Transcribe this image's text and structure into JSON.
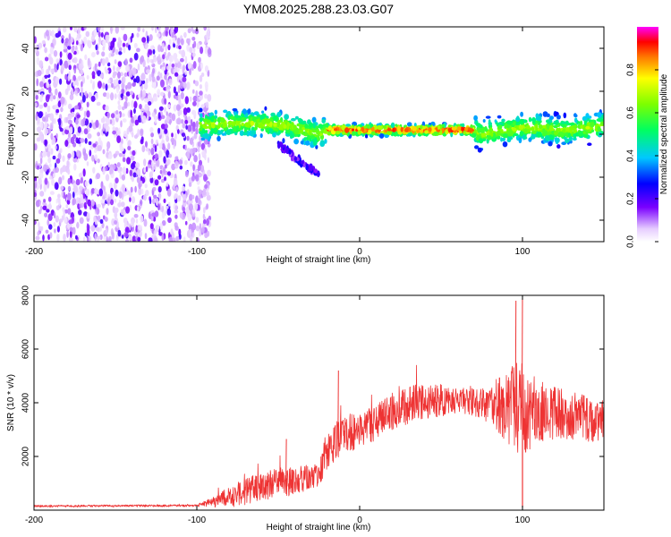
{
  "title": "YM08.2025.288.23.03.G07",
  "chart_data": [
    {
      "type": "heatmap",
      "title": "YM08.2025.288.23.03.G07",
      "xlabel": "Height of straight line (km)",
      "ylabel": "Frequency (Hz)",
      "xlim": [
        -200,
        150
      ],
      "ylim": [
        -50,
        50
      ],
      "xticks": [
        -200,
        -100,
        0,
        100
      ],
      "xtick_labels": [
        "-200",
        "-100",
        "0",
        "100"
      ],
      "yticks": [
        -40,
        -20,
        0,
        20,
        40
      ],
      "ytick_labels": [
        "-40",
        "-20",
        "0",
        "20",
        "40"
      ],
      "colorbar": {
        "label": "Normalized spectral amplitude",
        "range": [
          0,
          1
        ],
        "ticks": [
          0.0,
          0.2,
          0.4,
          0.6,
          0.8
        ],
        "tick_labels": [
          "0.0",
          "0.2",
          "0.4",
          "0.6",
          "0.8"
        ]
      },
      "regions": [
        {
          "description": "broadband noise",
          "x_range": [
            -200,
            -98
          ],
          "y_range": [
            -50,
            50
          ],
          "amplitude": [
            0.0,
            0.25
          ]
        },
        {
          "description": "signal track",
          "x_range": [
            -98,
            150
          ],
          "amplitude": [
            0.3,
            1.0
          ]
        },
        {
          "description": "secondary branch",
          "x_range": [
            -50,
            -25
          ],
          "y_range": [
            -20,
            -5
          ],
          "amplitude": [
            0.15,
            0.3
          ]
        }
      ],
      "ridge": {
        "x": [
          -98,
          -80,
          -60,
          -45,
          -35,
          -25,
          -20,
          0,
          20,
          40,
          60,
          68,
          75,
          80,
          90,
          100,
          110,
          120,
          130,
          140,
          150
        ],
        "y": [
          4,
          5,
          5,
          4,
          2,
          0,
          2,
          2,
          2,
          2,
          2,
          2,
          0,
          1,
          2,
          3,
          3,
          2,
          2,
          3,
          4
        ]
      }
    },
    {
      "type": "line",
      "xlabel": "Height of straight line (km)",
      "ylabel": "SNR (10 * v/v)",
      "xlim": [
        -200,
        150
      ],
      "ylim": [
        0,
        8000
      ],
      "xticks": [
        -200,
        -100,
        0,
        100
      ],
      "xtick_labels": [
        "-200",
        "-100",
        "0",
        "100"
      ],
      "yticks": [
        2000,
        4000,
        6000,
        8000
      ],
      "ytick_labels": [
        "2000",
        "4000",
        "6000",
        "8000"
      ],
      "series": [
        {
          "name": "SNR",
          "color": "#ee3333",
          "trend": {
            "x": [
              -200,
              -100,
              -90,
              -80,
              -70,
              -60,
              -50,
              -40,
              -30,
              -25,
              -20,
              -10,
              0,
              10,
              20,
              30,
              40,
              50,
              60,
              70,
              80,
              90,
              100,
              110,
              120,
              130,
              140,
              150
            ],
            "y": [
              150,
              170,
              300,
              500,
              700,
              900,
              1000,
              1100,
              1200,
              1300,
              2300,
              2800,
              3000,
              3300,
              3700,
              3900,
              4100,
              4100,
              4100,
              4000,
              3900,
              3900,
              3800,
              3700,
              3600,
              3500,
              3400,
              3300
            ]
          },
          "spread": {
            "x": [
              -200,
              -100,
              -90,
              -80,
              -70,
              -60,
              -50,
              -40,
              -30,
              -25,
              -20,
              -10,
              0,
              10,
              20,
              30,
              40,
              50,
              60,
              70,
              80,
              90,
              100,
              110,
              120,
              130,
              140,
              150
            ],
            "y": [
              40,
              40,
              200,
              400,
              500,
              500,
              600,
              500,
              500,
              400,
              800,
              700,
              700,
              700,
              700,
              700,
              700,
              600,
              500,
              500,
              700,
              1400,
              1800,
              1200,
              1000,
              900,
              900,
              800
            ]
          },
          "peaks": [
            {
              "x": -45,
              "y": 2650
            },
            {
              "x": -13,
              "y": 5200
            },
            {
              "x": 96,
              "y": 7800
            },
            {
              "x": 100,
              "y": 8000
            }
          ],
          "dips": [
            {
              "x": 100,
              "y": 100
            }
          ]
        }
      ]
    }
  ]
}
